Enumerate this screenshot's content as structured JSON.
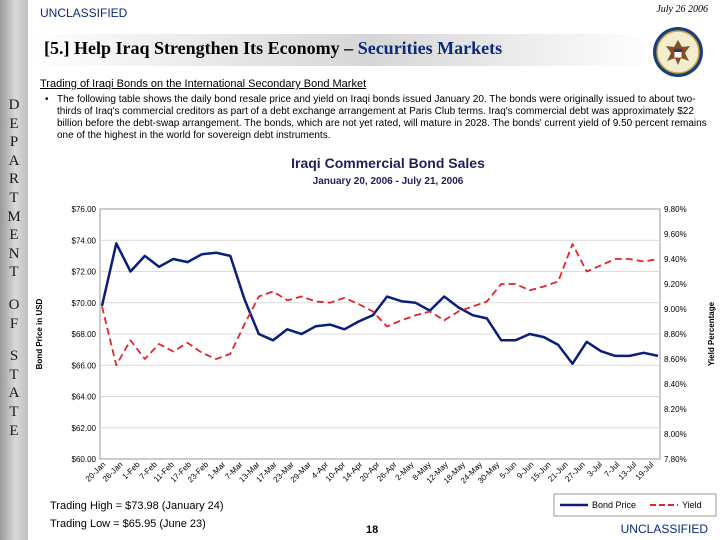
{
  "header": {
    "classification": "UNCLASSIFIED",
    "date": "July 26 2006"
  },
  "title": {
    "prefix": "[5.] Help Iraq Strengthen Its Economy – ",
    "accent": "Securities Markets"
  },
  "sidebar": {
    "letters": [
      "D",
      "E",
      "P",
      "A",
      "R",
      "T",
      "M",
      "E",
      "N",
      "T",
      "",
      "O",
      "F",
      "",
      "S",
      "T",
      "A",
      "T",
      "E"
    ]
  },
  "subhead": "Trading of Iraqi Bonds on the International Secondary Bond Market",
  "bullet": {
    "marker": "•",
    "text": "The following table shows the daily bond resale price and yield on Iraqi bonds issued January 20.  The bonds were originally issued to about two-thirds of Iraq's commercial creditors as part of a debt exchange arrangement at Paris Club terms.  Iraq's commercial debt was approximately $22 billion before the debt-swap arrangement.  The bonds, which are not yet rated, will mature in 2028.  The bonds' current yield of 9.50 percent remains one of the highest in the world for sovereign debt instruments."
  },
  "footer": {
    "trading_high": "Trading High = $73.98 (January 24)",
    "trading_low": "Trading Low = $65.95 (June 23)",
    "page_number": "18",
    "classification": "UNCLASSIFIED"
  },
  "colors": {
    "price": "#0a1f7a",
    "yield": "#e0262a",
    "accent": "#0a2a7a"
  },
  "chart_data": {
    "type": "line",
    "title": "Iraqi Commercial Bond Sales",
    "subtitle": "January 20, 2006 - July 21, 2006",
    "ylabel_left": "Bond Price in USD",
    "ylabel_right": "Yield Percentage",
    "left_axis": {
      "min": 60,
      "max": 76,
      "ticks": [
        "$60.00",
        "$62.00",
        "$64.00",
        "$66.00",
        "$68.00",
        "$70.00",
        "$72.00",
        "$74.00",
        "$76.00"
      ]
    },
    "right_axis": {
      "min": 7.8,
      "max": 9.8,
      "ticks": [
        "7.80%",
        "8.00%",
        "8.20%",
        "8.40%",
        "8.60%",
        "8.80%",
        "9.00%",
        "9.20%",
        "9.40%",
        "9.60%",
        "9.80%"
      ]
    },
    "x_ticks": [
      "20-Jan",
      "26-Jan",
      "1-Feb",
      "7-Feb",
      "11-Feb",
      "17-Feb",
      "23-Feb",
      "1-Mar",
      "7-Mar",
      "13-Mar",
      "17-Mar",
      "23-Mar",
      "29-Mar",
      "4-Apr",
      "10-Apr",
      "14-Apr",
      "20-Apr",
      "26-Apr",
      "2-May",
      "8-May",
      "12-May",
      "18-May",
      "24-May",
      "30-May",
      "5-Jun",
      "9-Jun",
      "15-Jun",
      "21-Jun",
      "27-Jun",
      "3-Jul",
      "7-Jul",
      "13-Jul",
      "19-Jul"
    ],
    "legend": [
      "Bond Price",
      "Yield"
    ],
    "legend_position": "bottom-right",
    "series": [
      {
        "name": "Bond Price",
        "axis": "left",
        "style": "solid",
        "values": [
          69.8,
          73.8,
          72.0,
          73.0,
          72.3,
          72.8,
          72.6,
          73.1,
          73.2,
          73.0,
          70.2,
          68.0,
          67.6,
          68.3,
          68.0,
          68.5,
          68.6,
          68.3,
          68.8,
          69.2,
          70.4,
          70.1,
          70.0,
          69.5,
          70.4,
          69.7,
          69.2,
          69.0,
          67.6,
          67.6,
          68.0,
          67.8,
          67.3,
          66.1,
          67.5,
          66.9,
          66.6,
          66.6,
          66.8,
          66.6
        ]
      },
      {
        "name": "Yield",
        "axis": "right",
        "style": "dashed",
        "values": [
          9.02,
          8.55,
          8.75,
          8.6,
          8.72,
          8.66,
          8.73,
          8.65,
          8.6,
          8.64,
          8.88,
          9.1,
          9.14,
          9.07,
          9.1,
          9.06,
          9.05,
          9.09,
          9.04,
          8.98,
          8.86,
          8.91,
          8.95,
          8.98,
          8.91,
          8.98,
          9.02,
          9.06,
          9.2,
          9.2,
          9.15,
          9.18,
          9.22,
          9.52,
          9.3,
          9.35,
          9.4,
          9.4,
          9.38,
          9.4
        ]
      }
    ]
  }
}
